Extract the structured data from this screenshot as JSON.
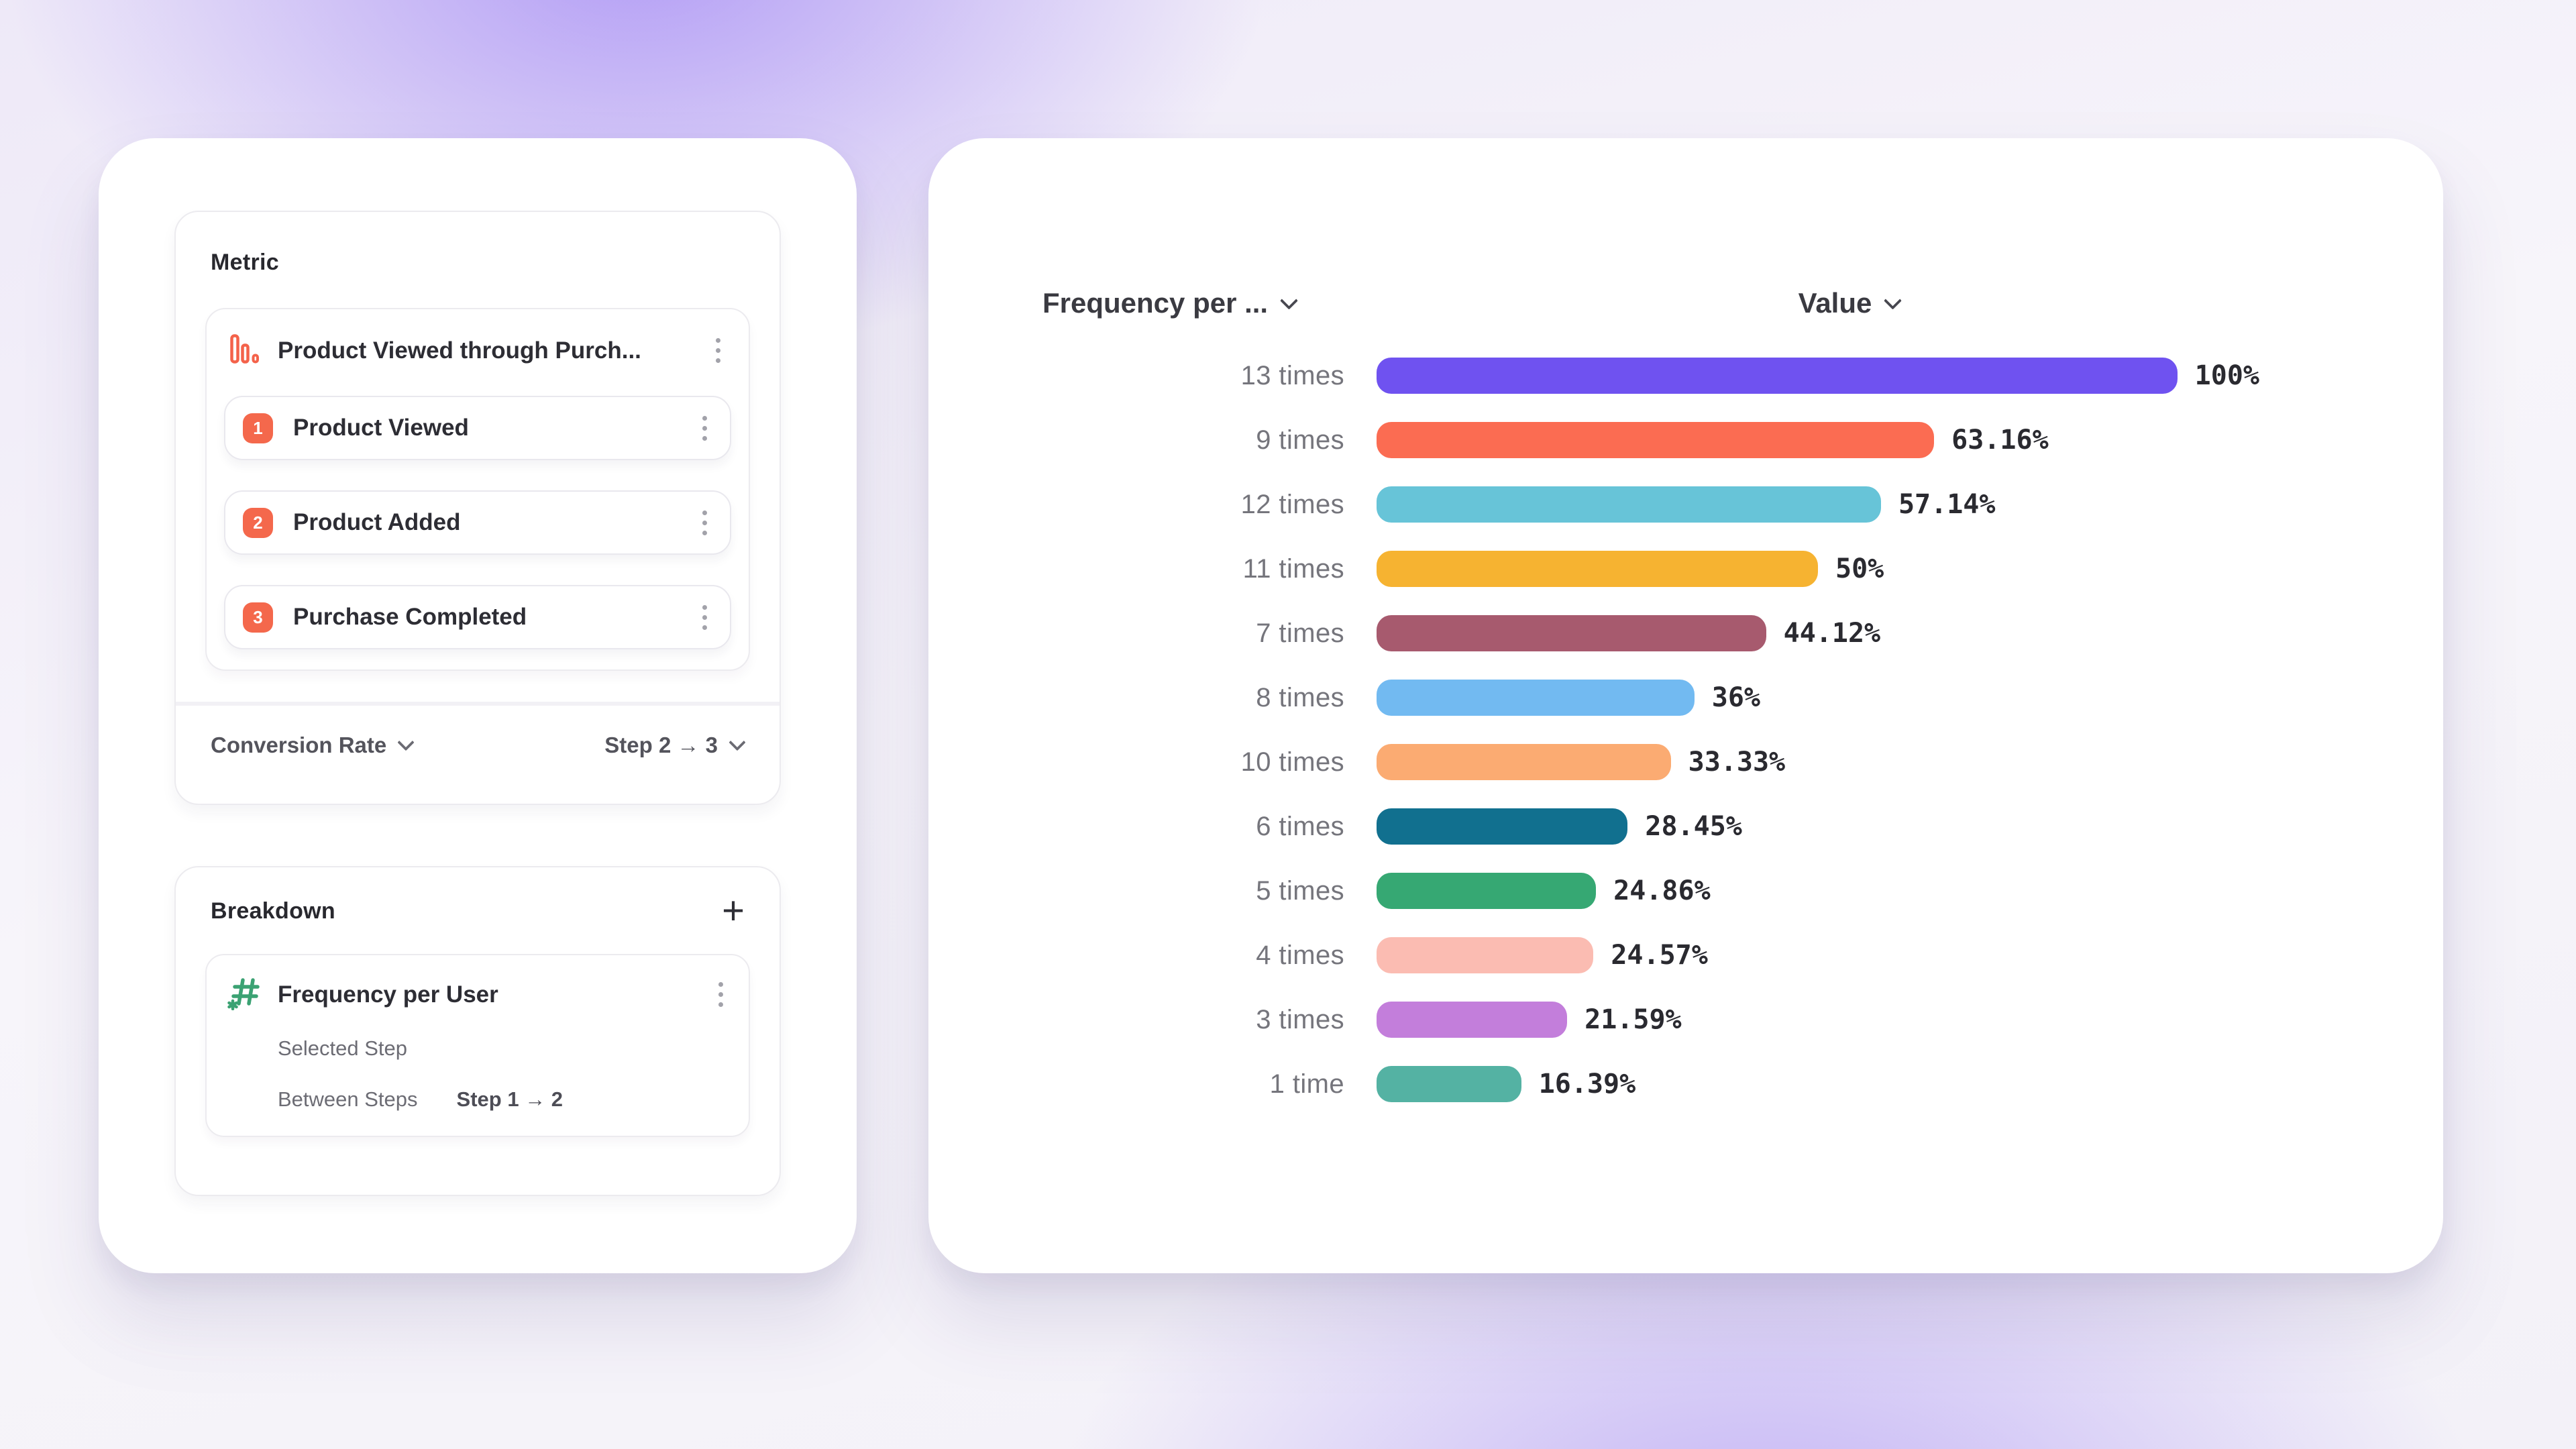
{
  "theme": {
    "accent_orange": "#F4684C",
    "accent_green": "#3BA273",
    "background_glow": "#8664F2",
    "card_background": "#FFFFFF"
  },
  "left_panel": {
    "metric": {
      "title": "Metric",
      "funnel_name": "Product Viewed through Purch...",
      "funnel_icon": "funnel-bars-icon",
      "steps": [
        {
          "number": "1",
          "label": "Product Viewed"
        },
        {
          "number": "2",
          "label": "Product Added"
        },
        {
          "number": "3",
          "label": "Purchase Completed"
        }
      ],
      "measurement_label": "Conversion Rate",
      "step_range_label": "Step 2 → 3"
    },
    "breakdown": {
      "title": "Breakdown",
      "add_button": "+",
      "item_name": "Frequency per User",
      "item_icon": "hash-numeric-icon",
      "selected_step_label": "Selected Step",
      "between_steps_label": "Between Steps",
      "between_steps_value": "Step 1 → 2"
    }
  },
  "chart": {
    "category_column_label": "Frequency per ...",
    "value_column_label": "Value"
  },
  "chart_data": {
    "type": "bar",
    "orientation": "horizontal",
    "title": "",
    "column_headers": [
      "Frequency per ...",
      "Value"
    ],
    "categories": [
      "13 times",
      "9 times",
      "12 times",
      "11 times",
      "7 times",
      "8 times",
      "10 times",
      "6 times",
      "5 times",
      "4 times",
      "3 times",
      "1 time"
    ],
    "values": [
      100,
      63.16,
      57.14,
      50,
      44.12,
      36,
      33.33,
      28.45,
      24.86,
      24.57,
      21.59,
      16.39
    ],
    "value_labels": [
      "100%",
      "63.16%",
      "57.14%",
      "50%",
      "44.12%",
      "36%",
      "33.33%",
      "28.45%",
      "24.86%",
      "24.57%",
      "21.59%",
      "16.39%"
    ],
    "bar_colors": [
      "#6F52F0",
      "#FB6C52",
      "#67C4D8",
      "#F6B331",
      "#A75A6E",
      "#72BAF1",
      "#FBAB72",
      "#11708F",
      "#36A873",
      "#FBBCB2",
      "#C37EDB",
      "#54B2A3"
    ],
    "dotted_bars": [
      "12 times"
    ],
    "xlim": [
      0,
      100
    ],
    "grid": "off",
    "legend": "none"
  }
}
